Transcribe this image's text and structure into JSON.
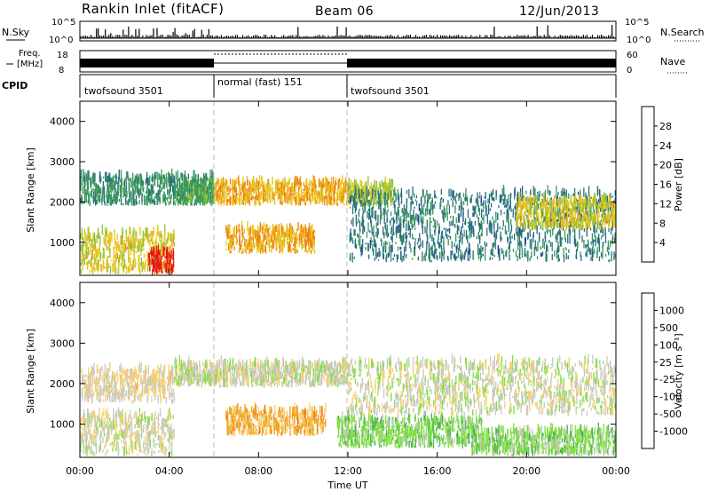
{
  "header": {
    "station": "Rankin Inlet (fitACF)",
    "beam": "Beam 06",
    "date": "12/Jun/2013"
  },
  "params": {
    "nsky_label": "N.Sky",
    "nsearch_label": "N.Search",
    "freq_label_1": "Freq.",
    "freq_label_2": "[MHz]",
    "nave_label": "Nave",
    "cpid_label": "CPID",
    "left_ticks_top": [
      "10^5",
      "10^0"
    ],
    "right_ticks_top": [
      "10^5",
      "10^0"
    ],
    "left_ticks_freq": [
      "18",
      "8"
    ],
    "right_ticks_nave": [
      "60",
      "0"
    ]
  },
  "cpid": [
    {
      "label": "twofsound 3501",
      "start": 0,
      "end": 6
    },
    {
      "label": "normal (fast) 151",
      "start": 6,
      "end": 12
    },
    {
      "label": "twofsound 3501",
      "start": 12,
      "end": 24
    }
  ],
  "x_axis": {
    "label": "Time UT",
    "ticks": [
      "00:00",
      "04:00",
      "08:00",
      "12:00",
      "16:00",
      "20:00",
      "00:00"
    ]
  },
  "y_axis": {
    "label": "Slant Range [km]",
    "ticks": [
      "1000",
      "2000",
      "3000",
      "4000"
    ]
  },
  "colorbars": {
    "power": {
      "label": "Power [dB]",
      "ticks": [
        "28",
        "24",
        "20",
        "16",
        "12",
        "8",
        "4"
      ],
      "colors": [
        "#0a14e6",
        "#1e3ca0",
        "#2a6e7e",
        "#3a9a5a",
        "#8ec43a",
        "#e6c41c",
        "#f08214",
        "#e61414"
      ]
    },
    "velocity": {
      "label": "Velocity [m s⁻¹]",
      "ticks": [
        "1000",
        "500",
        "100",
        "25",
        "-25",
        "-100",
        "-500",
        "-1000"
      ],
      "colors": [
        "#1e3cb4",
        "#2a6ea0",
        "#2e8a5a",
        "#4ab84a",
        "#80e040",
        "#c8c8c0",
        "#f5d070",
        "#f0a020",
        "#f07010",
        "#f04010",
        "#e61414"
      ]
    }
  },
  "chart_data": [
    {
      "type": "heatmap",
      "title": "Power",
      "xlabel": "Time UT",
      "ylabel": "Slant Range [km]",
      "xlim": [
        0,
        24
      ],
      "ylim": [
        180,
        4500
      ],
      "colorbar_range": [
        0,
        30
      ],
      "colorbar_label": "Power [dB]",
      "scatter_bands": [
        {
          "x": [
            0,
            6
          ],
          "y": [
            1900,
            2600
          ],
          "value": 12
        },
        {
          "x": [
            0,
            4.2
          ],
          "y": [
            200,
            1200
          ],
          "value": 20
        },
        {
          "x": [
            3.0,
            4.2
          ],
          "y": [
            180,
            700
          ],
          "value": 28
        },
        {
          "x": [
            4.2,
            6
          ],
          "y": [
            1900,
            2400
          ],
          "value": 14
        },
        {
          "x": [
            6,
            12
          ],
          "y": [
            1900,
            2450
          ],
          "value": 22
        },
        {
          "x": [
            6.5,
            10.5
          ],
          "y": [
            700,
            1300
          ],
          "value": 22
        },
        {
          "x": [
            12,
            14
          ],
          "y": [
            1900,
            2400
          ],
          "value": 18
        },
        {
          "x": [
            12,
            24
          ],
          "y": [
            500,
            2200
          ],
          "value": 10
        },
        {
          "x": [
            19.5,
            24
          ],
          "y": [
            1300,
            2000
          ],
          "value": 20
        }
      ]
    },
    {
      "type": "heatmap",
      "title": "Velocity",
      "xlabel": "Time UT",
      "ylabel": "Slant Range [km]",
      "xlim": [
        0,
        24
      ],
      "ylim": [
        180,
        4500
      ],
      "colorbar_range": [
        -1000,
        1000
      ],
      "colorbar_label": "Velocity [m s⁻¹]",
      "scatter_bands": [
        {
          "x": [
            4.2,
            12
          ],
          "y": [
            1900,
            2450
          ],
          "value": 0
        },
        {
          "x": [
            0,
            4.2
          ],
          "y": [
            1500,
            2300
          ],
          "value": 100
        },
        {
          "x": [
            0,
            4.2
          ],
          "y": [
            200,
            1200
          ],
          "value": 25
        },
        {
          "x": [
            6.5,
            11
          ],
          "y": [
            700,
            1300
          ],
          "value": 300
        },
        {
          "x": [
            11.5,
            18
          ],
          "y": [
            400,
            1100
          ],
          "value": -200
        },
        {
          "x": [
            12,
            24
          ],
          "y": [
            1200,
            2500
          ],
          "value": 0
        },
        {
          "x": [
            17.5,
            24
          ],
          "y": [
            200,
            800
          ],
          "value": -200
        }
      ]
    }
  ]
}
